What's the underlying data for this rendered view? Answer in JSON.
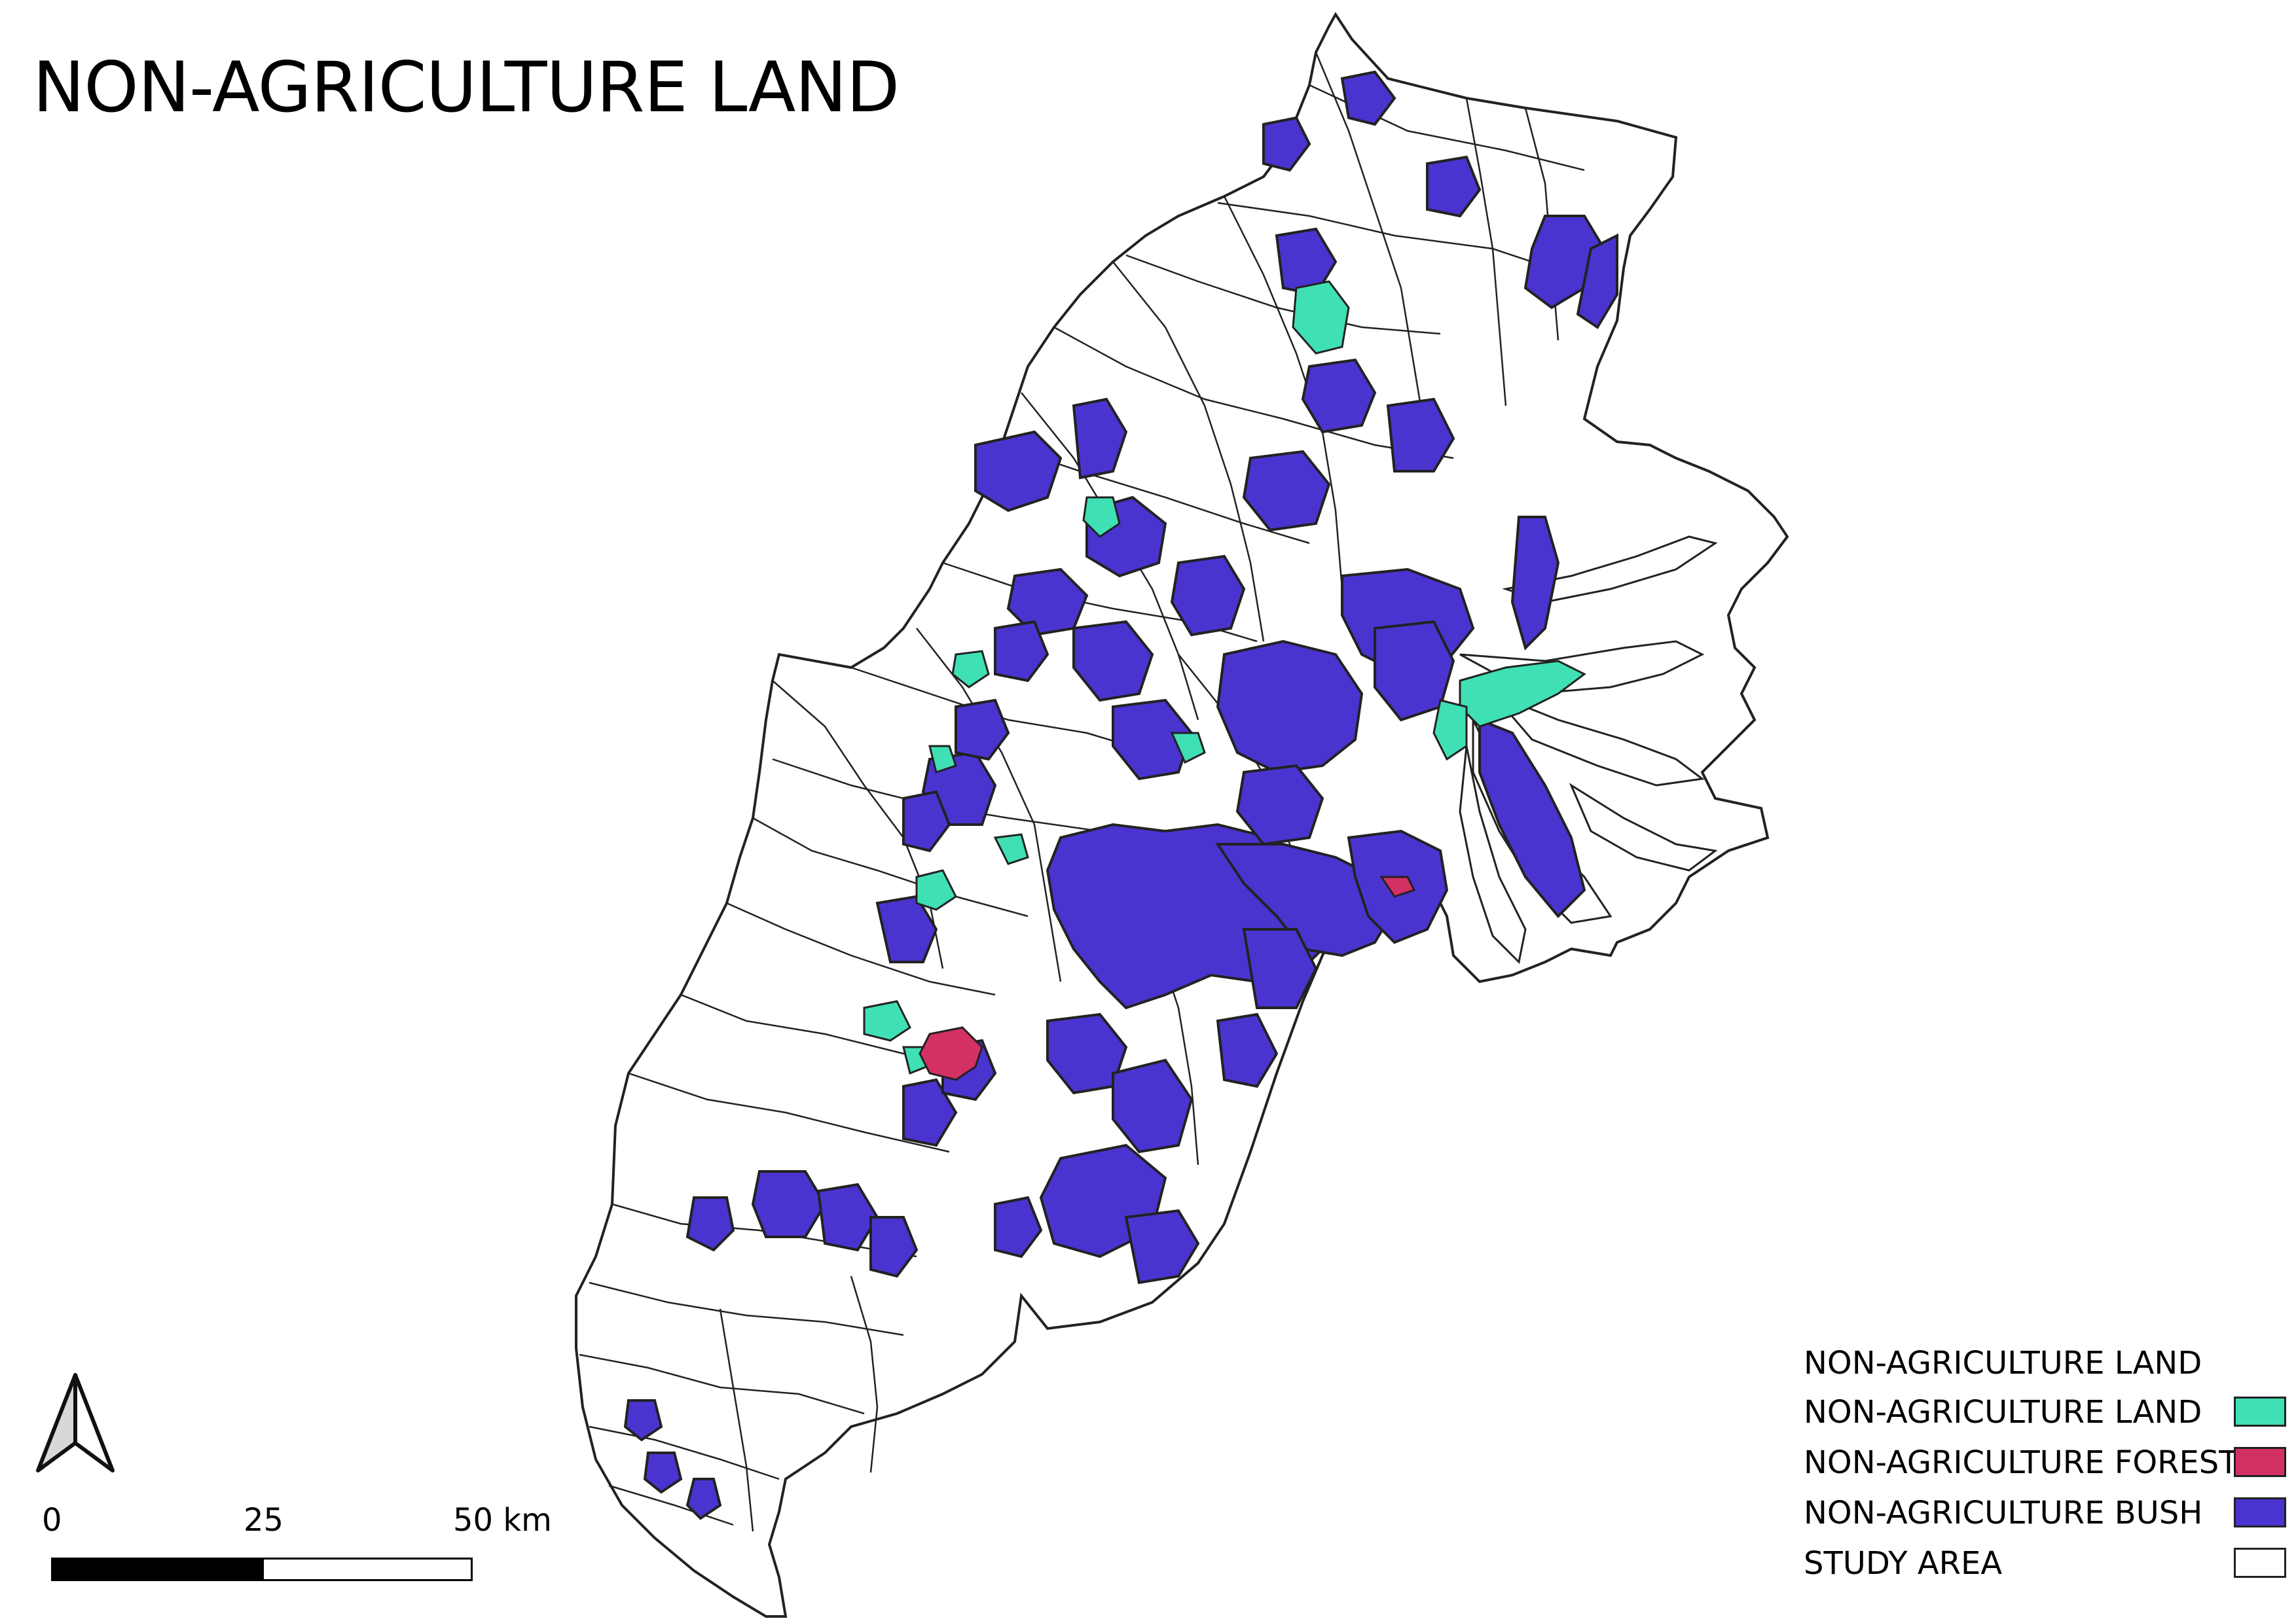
{
  "map": {
    "title": "NON-AGRICULTURE LAND"
  },
  "legend": {
    "heading": "NON-AGRICULTURE LAND",
    "items": [
      {
        "label": "NON-AGRICULTURE LAND",
        "color": "#3fe0b4"
      },
      {
        "label": "NON-AGRICULTURE FOREST",
        "color": "#d33064"
      },
      {
        "label": "NON-AGRICULTURE BUSH",
        "color": "#4a34d0"
      },
      {
        "label": "STUDY AREA",
        "color": "#ffffff"
      }
    ]
  },
  "scalebar": {
    "labels": [
      "0",
      "25",
      "50 km"
    ]
  },
  "colors": {
    "boundary": "#222222",
    "land": "#3fe0b4",
    "forest": "#d33064",
    "bush": "#4a34d0",
    "study_area": "#ffffff"
  },
  "north_arrow": {
    "icon": "north-arrow-icon"
  }
}
